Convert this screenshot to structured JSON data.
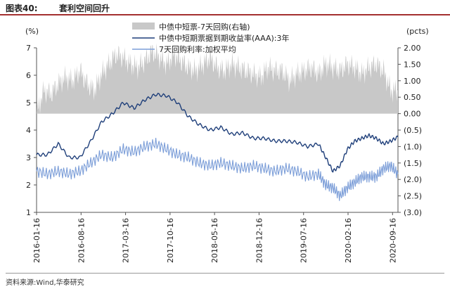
{
  "header": {
    "label": "图表40:",
    "title": "套利空间回升"
  },
  "source": "资料来源:Wind,华泰研究",
  "chart_data": {
    "type": "line",
    "left_axis": {
      "unit": "(%)",
      "min": 1,
      "max": 7,
      "ticks": [
        "1",
        "2",
        "3",
        "4",
        "5",
        "6",
        "7"
      ]
    },
    "right_axis": {
      "unit": "(pcts)",
      "min": -3.0,
      "max": 2.0,
      "ticks": [
        "(3.0)",
        "(2.5)",
        "(2.0)",
        "(1.5)",
        "(1.0)",
        "(0.5)",
        "0.00",
        "0.50",
        "1.00",
        "1.50",
        "2.00"
      ]
    },
    "x_ticks": [
      "2016-01-16",
      "2016-08-16",
      "2017-03-16",
      "2017-10-16",
      "2018-05-16",
      "2018-12-16",
      "2019-07-16",
      "2020-02-16",
      "2020-09-16"
    ],
    "legend": [
      {
        "name": "中债中短票-7天回购(右轴)",
        "color": "#c8c8c8",
        "kind": "area"
      },
      {
        "name": "中债中短期票据到期收益率(AAA):3年",
        "color": "#1f3f7a",
        "kind": "line"
      },
      {
        "name": "7天回购利率:加权平均",
        "color": "#7c9ed8",
        "kind": "line"
      }
    ],
    "series": [
      {
        "name": "中债中短票-7天回购(右轴)",
        "axis": "right",
        "color": "#c8c8c8",
        "points": [
          [
            0.0,
            0.0
          ],
          [
            0.02,
            0.7
          ],
          [
            0.04,
            0.6
          ],
          [
            0.06,
            0.9
          ],
          [
            0.08,
            1.1
          ],
          [
            0.1,
            1.0
          ],
          [
            0.12,
            1.3
          ],
          [
            0.14,
            0.9
          ],
          [
            0.16,
            0.7
          ],
          [
            0.18,
            1.2
          ],
          [
            0.2,
            1.5
          ],
          [
            0.22,
            1.8
          ],
          [
            0.24,
            1.7
          ],
          [
            0.26,
            1.5
          ],
          [
            0.28,
            1.4
          ],
          [
            0.3,
            1.6
          ],
          [
            0.32,
            1.9
          ],
          [
            0.34,
            1.7
          ],
          [
            0.36,
            1.5
          ],
          [
            0.38,
            1.8
          ],
          [
            0.4,
            1.6
          ],
          [
            0.42,
            1.4
          ],
          [
            0.44,
            1.3
          ],
          [
            0.46,
            1.5
          ],
          [
            0.48,
            1.7
          ],
          [
            0.5,
            1.4
          ],
          [
            0.52,
            1.3
          ],
          [
            0.54,
            1.5
          ],
          [
            0.56,
            1.4
          ],
          [
            0.58,
            1.3
          ],
          [
            0.6,
            1.2
          ],
          [
            0.62,
            1.1
          ],
          [
            0.64,
            1.4
          ],
          [
            0.66,
            1.3
          ],
          [
            0.68,
            1.3
          ],
          [
            0.7,
            1.0
          ],
          [
            0.72,
            1.2
          ],
          [
            0.74,
            1.3
          ],
          [
            0.76,
            1.4
          ],
          [
            0.78,
            1.2
          ],
          [
            0.8,
            1.5
          ],
          [
            0.82,
            1.4
          ],
          [
            0.84,
            1.3
          ],
          [
            0.86,
            1.5
          ],
          [
            0.88,
            1.4
          ],
          [
            0.9,
            1.2
          ],
          [
            0.92,
            1.4
          ],
          [
            0.94,
            1.5
          ],
          [
            0.96,
            1.3
          ],
          [
            0.98,
            0.7
          ],
          [
            1.0,
            0.7
          ]
        ]
      },
      {
        "name": "中债中短期票据到期收益率(AAA):3年",
        "axis": "left",
        "color": "#1f3f7a",
        "points": [
          [
            0.0,
            3.1
          ],
          [
            0.03,
            3.1
          ],
          [
            0.06,
            3.5
          ],
          [
            0.09,
            3.0
          ],
          [
            0.12,
            3.0
          ],
          [
            0.15,
            3.6
          ],
          [
            0.18,
            4.3
          ],
          [
            0.21,
            4.6
          ],
          [
            0.24,
            5.0
          ],
          [
            0.27,
            4.8
          ],
          [
            0.3,
            5.1
          ],
          [
            0.33,
            5.3
          ],
          [
            0.36,
            5.25
          ],
          [
            0.39,
            5.0
          ],
          [
            0.42,
            4.5
          ],
          [
            0.45,
            4.2
          ],
          [
            0.48,
            4.0
          ],
          [
            0.51,
            4.1
          ],
          [
            0.54,
            3.85
          ],
          [
            0.57,
            3.9
          ],
          [
            0.6,
            3.7
          ],
          [
            0.63,
            3.7
          ],
          [
            0.66,
            3.6
          ],
          [
            0.69,
            3.6
          ],
          [
            0.72,
            3.55
          ],
          [
            0.75,
            3.4
          ],
          [
            0.78,
            3.5
          ],
          [
            0.8,
            3.0
          ],
          [
            0.82,
            2.5
          ],
          [
            0.84,
            2.7
          ],
          [
            0.86,
            3.3
          ],
          [
            0.88,
            3.6
          ],
          [
            0.9,
            3.7
          ],
          [
            0.92,
            3.8
          ],
          [
            0.94,
            3.7
          ],
          [
            0.96,
            3.5
          ],
          [
            0.98,
            3.6
          ],
          [
            1.0,
            3.75
          ]
        ]
      },
      {
        "name": "7天回购利率:加权平均",
        "axis": "left",
        "color": "#7c9ed8",
        "points": [
          [
            0.0,
            2.5
          ],
          [
            0.03,
            2.4
          ],
          [
            0.06,
            2.5
          ],
          [
            0.09,
            2.4
          ],
          [
            0.12,
            2.5
          ],
          [
            0.15,
            2.8
          ],
          [
            0.18,
            3.1
          ],
          [
            0.21,
            3.0
          ],
          [
            0.24,
            3.3
          ],
          [
            0.27,
            3.2
          ],
          [
            0.3,
            3.4
          ],
          [
            0.33,
            3.5
          ],
          [
            0.36,
            3.3
          ],
          [
            0.39,
            3.1
          ],
          [
            0.42,
            3.0
          ],
          [
            0.45,
            2.8
          ],
          [
            0.48,
            2.7
          ],
          [
            0.51,
            2.8
          ],
          [
            0.54,
            2.7
          ],
          [
            0.57,
            2.6
          ],
          [
            0.6,
            2.7
          ],
          [
            0.63,
            2.6
          ],
          [
            0.66,
            2.5
          ],
          [
            0.69,
            2.6
          ],
          [
            0.72,
            2.5
          ],
          [
            0.75,
            2.3
          ],
          [
            0.78,
            2.4
          ],
          [
            0.8,
            2.0
          ],
          [
            0.82,
            1.9
          ],
          [
            0.84,
            1.6
          ],
          [
            0.86,
            1.9
          ],
          [
            0.88,
            2.1
          ],
          [
            0.9,
            2.3
          ],
          [
            0.92,
            2.3
          ],
          [
            0.94,
            2.3
          ],
          [
            0.96,
            2.6
          ],
          [
            0.98,
            2.7
          ],
          [
            1.0,
            2.4
          ]
        ]
      }
    ],
    "x_positions_note": ""
  }
}
